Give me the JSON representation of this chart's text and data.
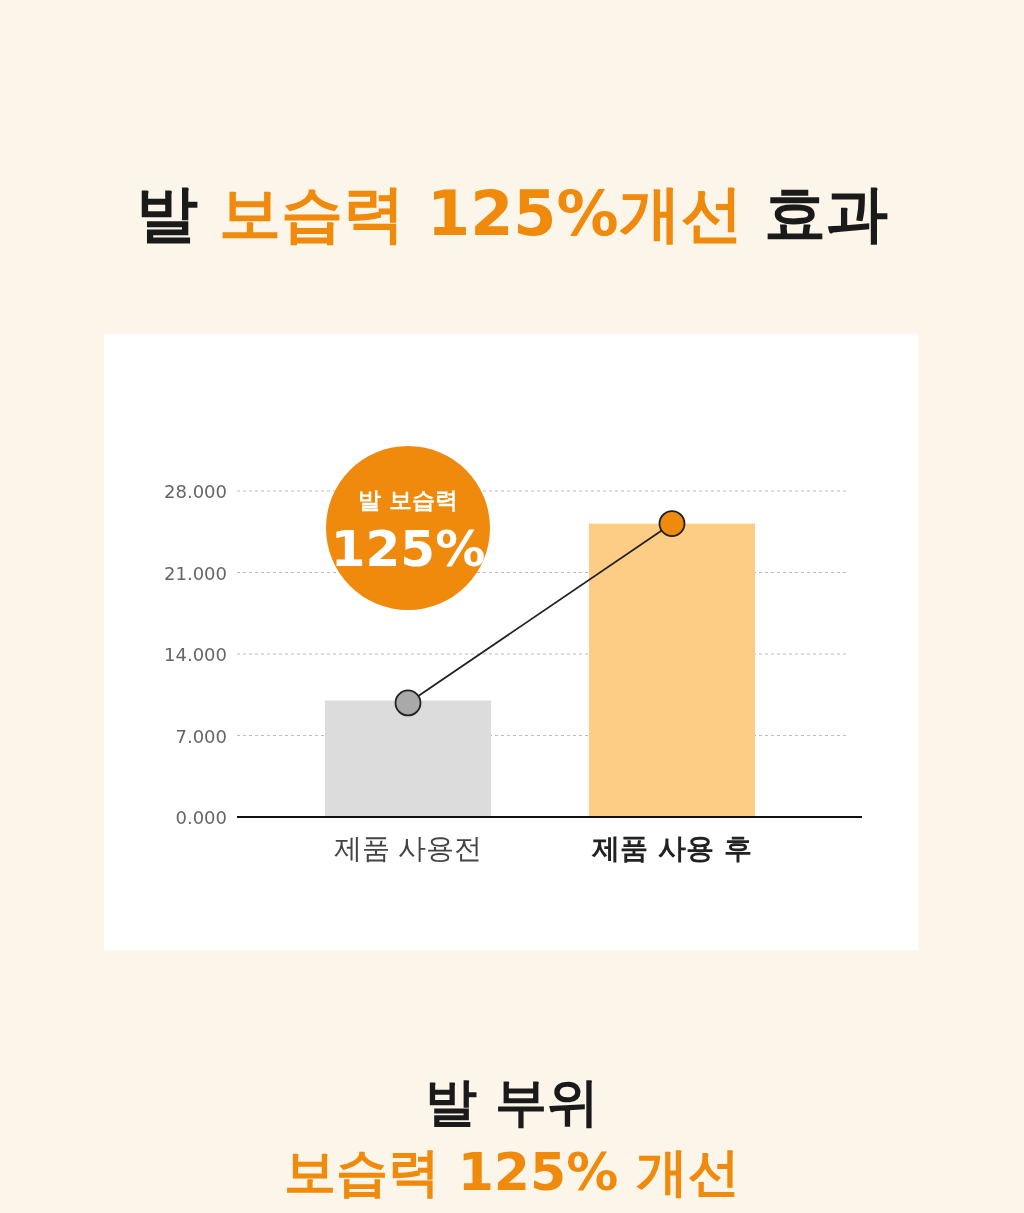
{
  "chart_data": {
    "type": "bar",
    "title": "발 **보습력 125%개선** 효과",
    "categories": [
      "제품 사용전",
      "제품 사용 후"
    ],
    "series": [
      {
        "colors": [
          "#dcdcdc",
          "#fdcd86"
        ],
        "values": [
          10.0,
          25.2
        ]
      },
      {
        "type": "line",
        "color": "#222222",
        "colors": [
          "#a9a9a9",
          "#f08a0c"
        ],
        "marker": "circle",
        "values": [
          9.8,
          25.2
        ]
      }
    ],
    "ylim": [
      0,
      28
    ],
    "yticks": [
      {
        "value": 0,
        "label": "0.000"
      },
      {
        "value": 7,
        "label": "7.000"
      },
      {
        "value": 14,
        "label": "14.000"
      },
      {
        "value": 21,
        "label": "21.000"
      },
      {
        "value": 28,
        "label": "28.000"
      }
    ],
    "grid": "y",
    "annotations": [
      "발 보습력",
      "125%",
      "발 부위",
      "보습력 125% 개선"
    ]
  }
}
